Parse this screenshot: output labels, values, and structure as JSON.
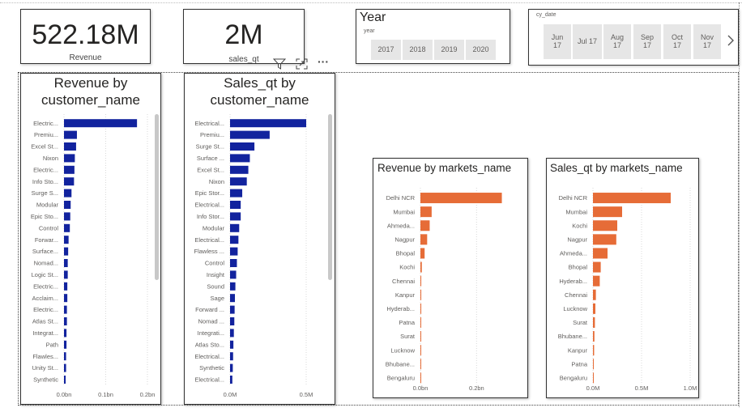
{
  "kpis": [
    {
      "value": "522.18M",
      "label": "Revenue"
    },
    {
      "value": "2M",
      "label": "sales_qt"
    }
  ],
  "year_slicer": {
    "title": "Year",
    "field_label": "year",
    "options": [
      "2017",
      "2018",
      "2019",
      "2020"
    ]
  },
  "date_slicer": {
    "field_label": "cy_date",
    "options": [
      {
        "month": "Jun",
        "year": "17"
      },
      {
        "month": "Jul 17",
        "year": ""
      },
      {
        "month": "Aug",
        "year": "17"
      },
      {
        "month": "Sep",
        "year": "17"
      },
      {
        "month": "Oct",
        "year": "17"
      },
      {
        "month": "Nov",
        "year": "17"
      }
    ],
    "next_icon": "chevron-right-icon"
  },
  "visual_header": {
    "icons": [
      "filter-icon",
      "focus-mode-icon",
      "more-options-icon"
    ],
    "more_glyph": "···"
  },
  "colors": {
    "bar_blue": "#12239e",
    "bar_orange": "#e66c37"
  },
  "chart_data": [
    {
      "type": "bar",
      "orientation": "horizontal",
      "title": "Revenue by customer_name",
      "title_lines": [
        "Revenue by",
        "customer_name"
      ],
      "categories": [
        "Electric...",
        "Premiu...",
        "Excel St...",
        "Nixon",
        "Electric...",
        "Info Sto...",
        "Surge S...",
        "Modular",
        "Epic Sto...",
        "Control",
        "Forwar...",
        "Surface...",
        "Nomad...",
        "Logic St...",
        "Electric...",
        "Acclaim...",
        "Electric...",
        "Atlas St...",
        "Integrat...",
        "Path",
        "Flawles...",
        "Unity St...",
        "Synthetic"
      ],
      "values": [
        0.175,
        0.031,
        0.029,
        0.026,
        0.025,
        0.024,
        0.018,
        0.016,
        0.015,
        0.014,
        0.011,
        0.01,
        0.009,
        0.009,
        0.008,
        0.008,
        0.007,
        0.007,
        0.006,
        0.006,
        0.005,
        0.005,
        0.004
      ],
      "xlim": [
        0,
        0.2
      ],
      "xticks": [
        0,
        0.1,
        0.2
      ],
      "xtick_labels": [
        "0.0bn",
        "0.1bn",
        "0.2bn"
      ],
      "color": "#12239e",
      "grid": true
    },
    {
      "type": "bar",
      "orientation": "horizontal",
      "title": "Sales_qt by customer_name",
      "title_lines": [
        "Sales_qt by",
        "customer_name"
      ],
      "categories": [
        "Electrical...",
        "Premiu...",
        "Surge St...",
        "Surface ...",
        "Excel St...",
        "Nixon",
        "Epic Stor...",
        "Electrical...",
        "Info Stor...",
        "Modular",
        "Electrical...",
        "Flawless ...",
        "Control",
        "Insight",
        "Sound",
        "Sage",
        "Forward ...",
        "Nomad ...",
        "Integrati...",
        "Atlas Sto...",
        "Electrical...",
        "Synthetic",
        "Electrical..."
      ],
      "values": [
        0.5,
        0.26,
        0.16,
        0.13,
        0.12,
        0.11,
        0.08,
        0.07,
        0.07,
        0.06,
        0.055,
        0.05,
        0.045,
        0.04,
        0.035,
        0.032,
        0.03,
        0.028,
        0.025,
        0.022,
        0.02,
        0.018,
        0.015
      ],
      "xlim": [
        0,
        0.5
      ],
      "xticks": [
        0,
        0.5
      ],
      "xtick_labels": [
        "0.0M",
        "0.5M"
      ],
      "color": "#12239e",
      "grid": true
    },
    {
      "type": "bar",
      "orientation": "horizontal",
      "title": "Revenue by markets_name",
      "categories": [
        "Delhi NCR",
        "Mumbai",
        "Ahmeda...",
        "Nagpur",
        "Bhopal",
        "Kochi",
        "Chennai",
        "Kanpur",
        "Hyderab...",
        "Patna",
        "Surat",
        "Lucknow",
        "Bhubane...",
        "Bengaluru"
      ],
      "values": [
        0.29,
        0.04,
        0.033,
        0.024,
        0.015,
        0.005,
        0.003,
        0.003,
        0.003,
        0.001,
        0.001,
        0.001,
        0.0005,
        0.0003
      ],
      "xlim": [
        0,
        0.3
      ],
      "xticks": [
        0,
        0.2
      ],
      "xtick_labels": [
        "0.0bn",
        "0.2bn"
      ],
      "color": "#e66c37",
      "grid": true
    },
    {
      "type": "bar",
      "orientation": "horizontal",
      "title": "Sales_qt by markets_name",
      "categories": [
        "Delhi NCR",
        "Mumbai",
        "Kochi",
        "Nagpur",
        "Ahmeda...",
        "Bhopal",
        "Hyderab...",
        "Chennai",
        "Lucknow",
        "Surat",
        "Bhubane...",
        "Kanpur",
        "Patna",
        "Bengaluru"
      ],
      "values": [
        0.8,
        0.3,
        0.25,
        0.24,
        0.15,
        0.08,
        0.07,
        0.03,
        0.025,
        0.02,
        0.015,
        0.012,
        0.008,
        0.005
      ],
      "xlim": [
        0,
        1.0
      ],
      "xticks": [
        0,
        0.5,
        1.0
      ],
      "xtick_labels": [
        "0.0M",
        "0.5M",
        "1.0M"
      ],
      "color": "#e66c37",
      "grid": true
    }
  ]
}
